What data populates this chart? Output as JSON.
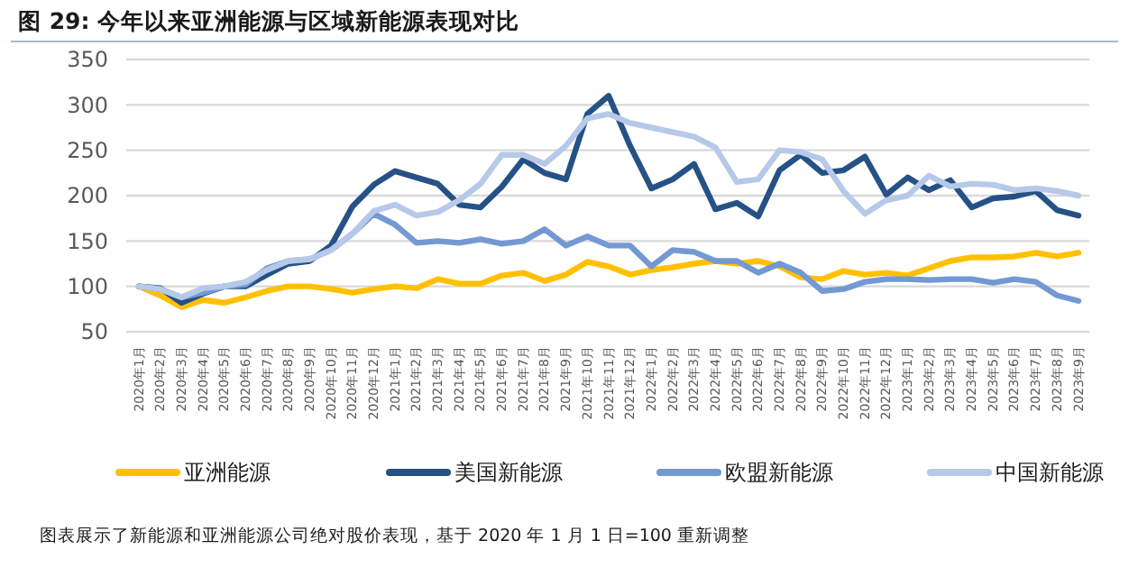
{
  "chart_data": {
    "type": "line",
    "title": "图 29:  今年以来亚洲能源与区域新能源表现对比",
    "categories": [
      "2020年1月",
      "2020年2月",
      "2020年3月",
      "2020年4月",
      "2020年5月",
      "2020年6月",
      "2020年7月",
      "2020年8月",
      "2020年9月",
      "2020年10月",
      "2020年11月",
      "2020年12月",
      "2021年1月",
      "2021年2月",
      "2021年3月",
      "2021年4月",
      "2021年5月",
      "2021年6月",
      "2021年7月",
      "2021年8月",
      "2021年9月",
      "2021年10月",
      "2021年11月",
      "2021年12月",
      "2022年1月",
      "2022年2月",
      "2022年3月",
      "2022年4月",
      "2022年5月",
      "2022年6月",
      "2022年7月",
      "2022年8月",
      "2022年9月",
      "2022年10月",
      "2022年11月",
      "2022年12月",
      "2023年1月",
      "2023年2月",
      "2023年3月",
      "2023年4月",
      "2023年5月",
      "2023年6月",
      "2023年7月",
      "2023年8月",
      "2023年9月"
    ],
    "series": [
      {
        "name": "亚洲能源",
        "color": "#ffc000",
        "values": [
          100,
          90,
          77,
          85,
          82,
          88,
          95,
          100,
          100,
          97,
          93,
          97,
          100,
          98,
          108,
          103,
          103,
          112,
          115,
          106,
          113,
          127,
          122,
          113,
          118,
          121,
          125,
          128,
          125,
          128,
          122,
          110,
          108,
          117,
          113,
          115,
          112,
          120,
          128,
          132,
          132,
          133,
          137,
          133,
          137
        ]
      },
      {
        "name": "美国新能源",
        "color": "#255186",
        "values": [
          100,
          98,
          82,
          92,
          100,
          100,
          113,
          125,
          128,
          145,
          188,
          212,
          227,
          220,
          213,
          190,
          187,
          210,
          240,
          225,
          218,
          290,
          310,
          255,
          208,
          218,
          235,
          185,
          192,
          177,
          228,
          245,
          225,
          228,
          243,
          201,
          220,
          206,
          217,
          187,
          197,
          199,
          205,
          184,
          178
        ]
      },
      {
        "name": "欧盟新能源",
        "color": "#7399d3",
        "values": [
          100,
          97,
          88,
          93,
          100,
          102,
          120,
          128,
          130,
          140,
          158,
          180,
          168,
          148,
          150,
          148,
          152,
          147,
          150,
          163,
          145,
          155,
          145,
          145,
          122,
          140,
          138,
          128,
          128,
          115,
          125,
          115,
          95,
          97,
          105,
          108,
          108,
          107,
          108,
          108,
          104,
          108,
          105,
          90,
          84
        ]
      },
      {
        "name": "中国新能源",
        "color": "#b7c9e8",
        "values": [
          100,
          97,
          88,
          98,
          100,
          105,
          118,
          128,
          130,
          140,
          158,
          183,
          190,
          178,
          182,
          195,
          213,
          245,
          245,
          235,
          255,
          285,
          290,
          280,
          275,
          270,
          265,
          253,
          215,
          218,
          250,
          248,
          240,
          205,
          180,
          195,
          200,
          222,
          210,
          213,
          212,
          206,
          208,
          205,
          200
        ]
      }
    ],
    "ylim": [
      50,
      350
    ],
    "yticks": [
      50,
      100,
      150,
      200,
      250,
      300,
      350
    ],
    "grid": "y",
    "legend": "bottom",
    "marker": "none",
    "line_style": "solid",
    "annotations": [
      "图表展示了新能源和亚洲能源公司绝对股价表现，基于 2020 年 1 月 1 日=100 重新调整"
    ]
  }
}
